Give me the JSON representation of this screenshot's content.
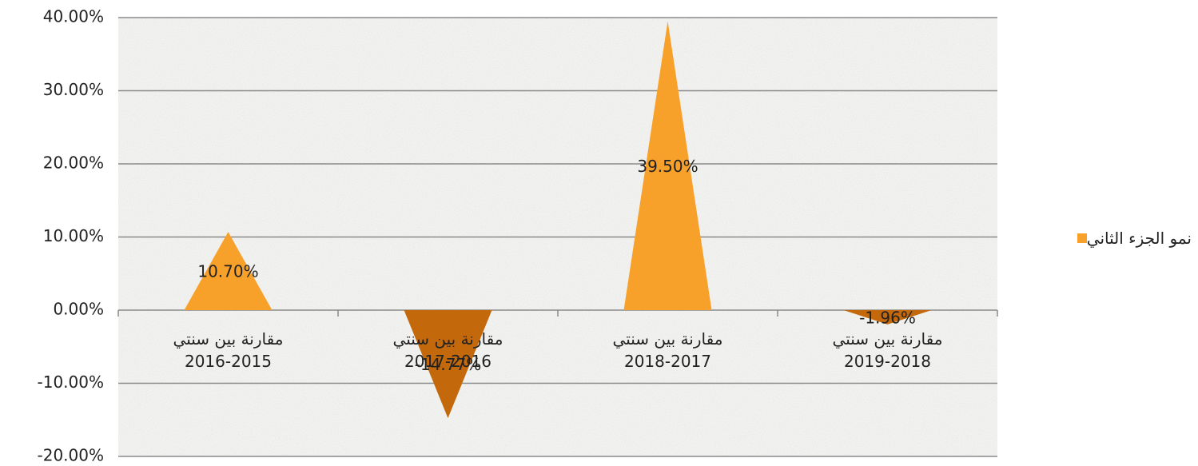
{
  "chart_data": {
    "type": "bar",
    "shape": "triangle",
    "categories": [
      "مقارنة بين سنتي\n2016-2015",
      "مقارنة بين سنتي\n2017-2016",
      "مقارنة بين سنتي\n2018-2017",
      "مقارنة بين سنتي\n2019-2018"
    ],
    "series": [
      {
        "name": "نمو الجزء الثاني",
        "color": "#f7a12b",
        "negative_color": "#c4680c",
        "values": [
          10.7,
          -14.77,
          39.5,
          -1.96
        ],
        "value_labels": [
          "10.70%",
          "-14.77%",
          "39.50%",
          "-1.96%"
        ]
      }
    ],
    "ylim": [
      -20,
      40
    ],
    "yticks": [
      {
        "value": -20,
        "label": "-20.00%"
      },
      {
        "value": -10,
        "label": "-10.00%"
      },
      {
        "value": 0,
        "label": "0.00%"
      },
      {
        "value": 10,
        "label": "10.00%"
      },
      {
        "value": 20,
        "label": "20.00%"
      },
      {
        "value": 30,
        "label": "30.00%"
      },
      {
        "value": 40,
        "label": "40.00%"
      }
    ],
    "grid": true,
    "legend": "right"
  }
}
